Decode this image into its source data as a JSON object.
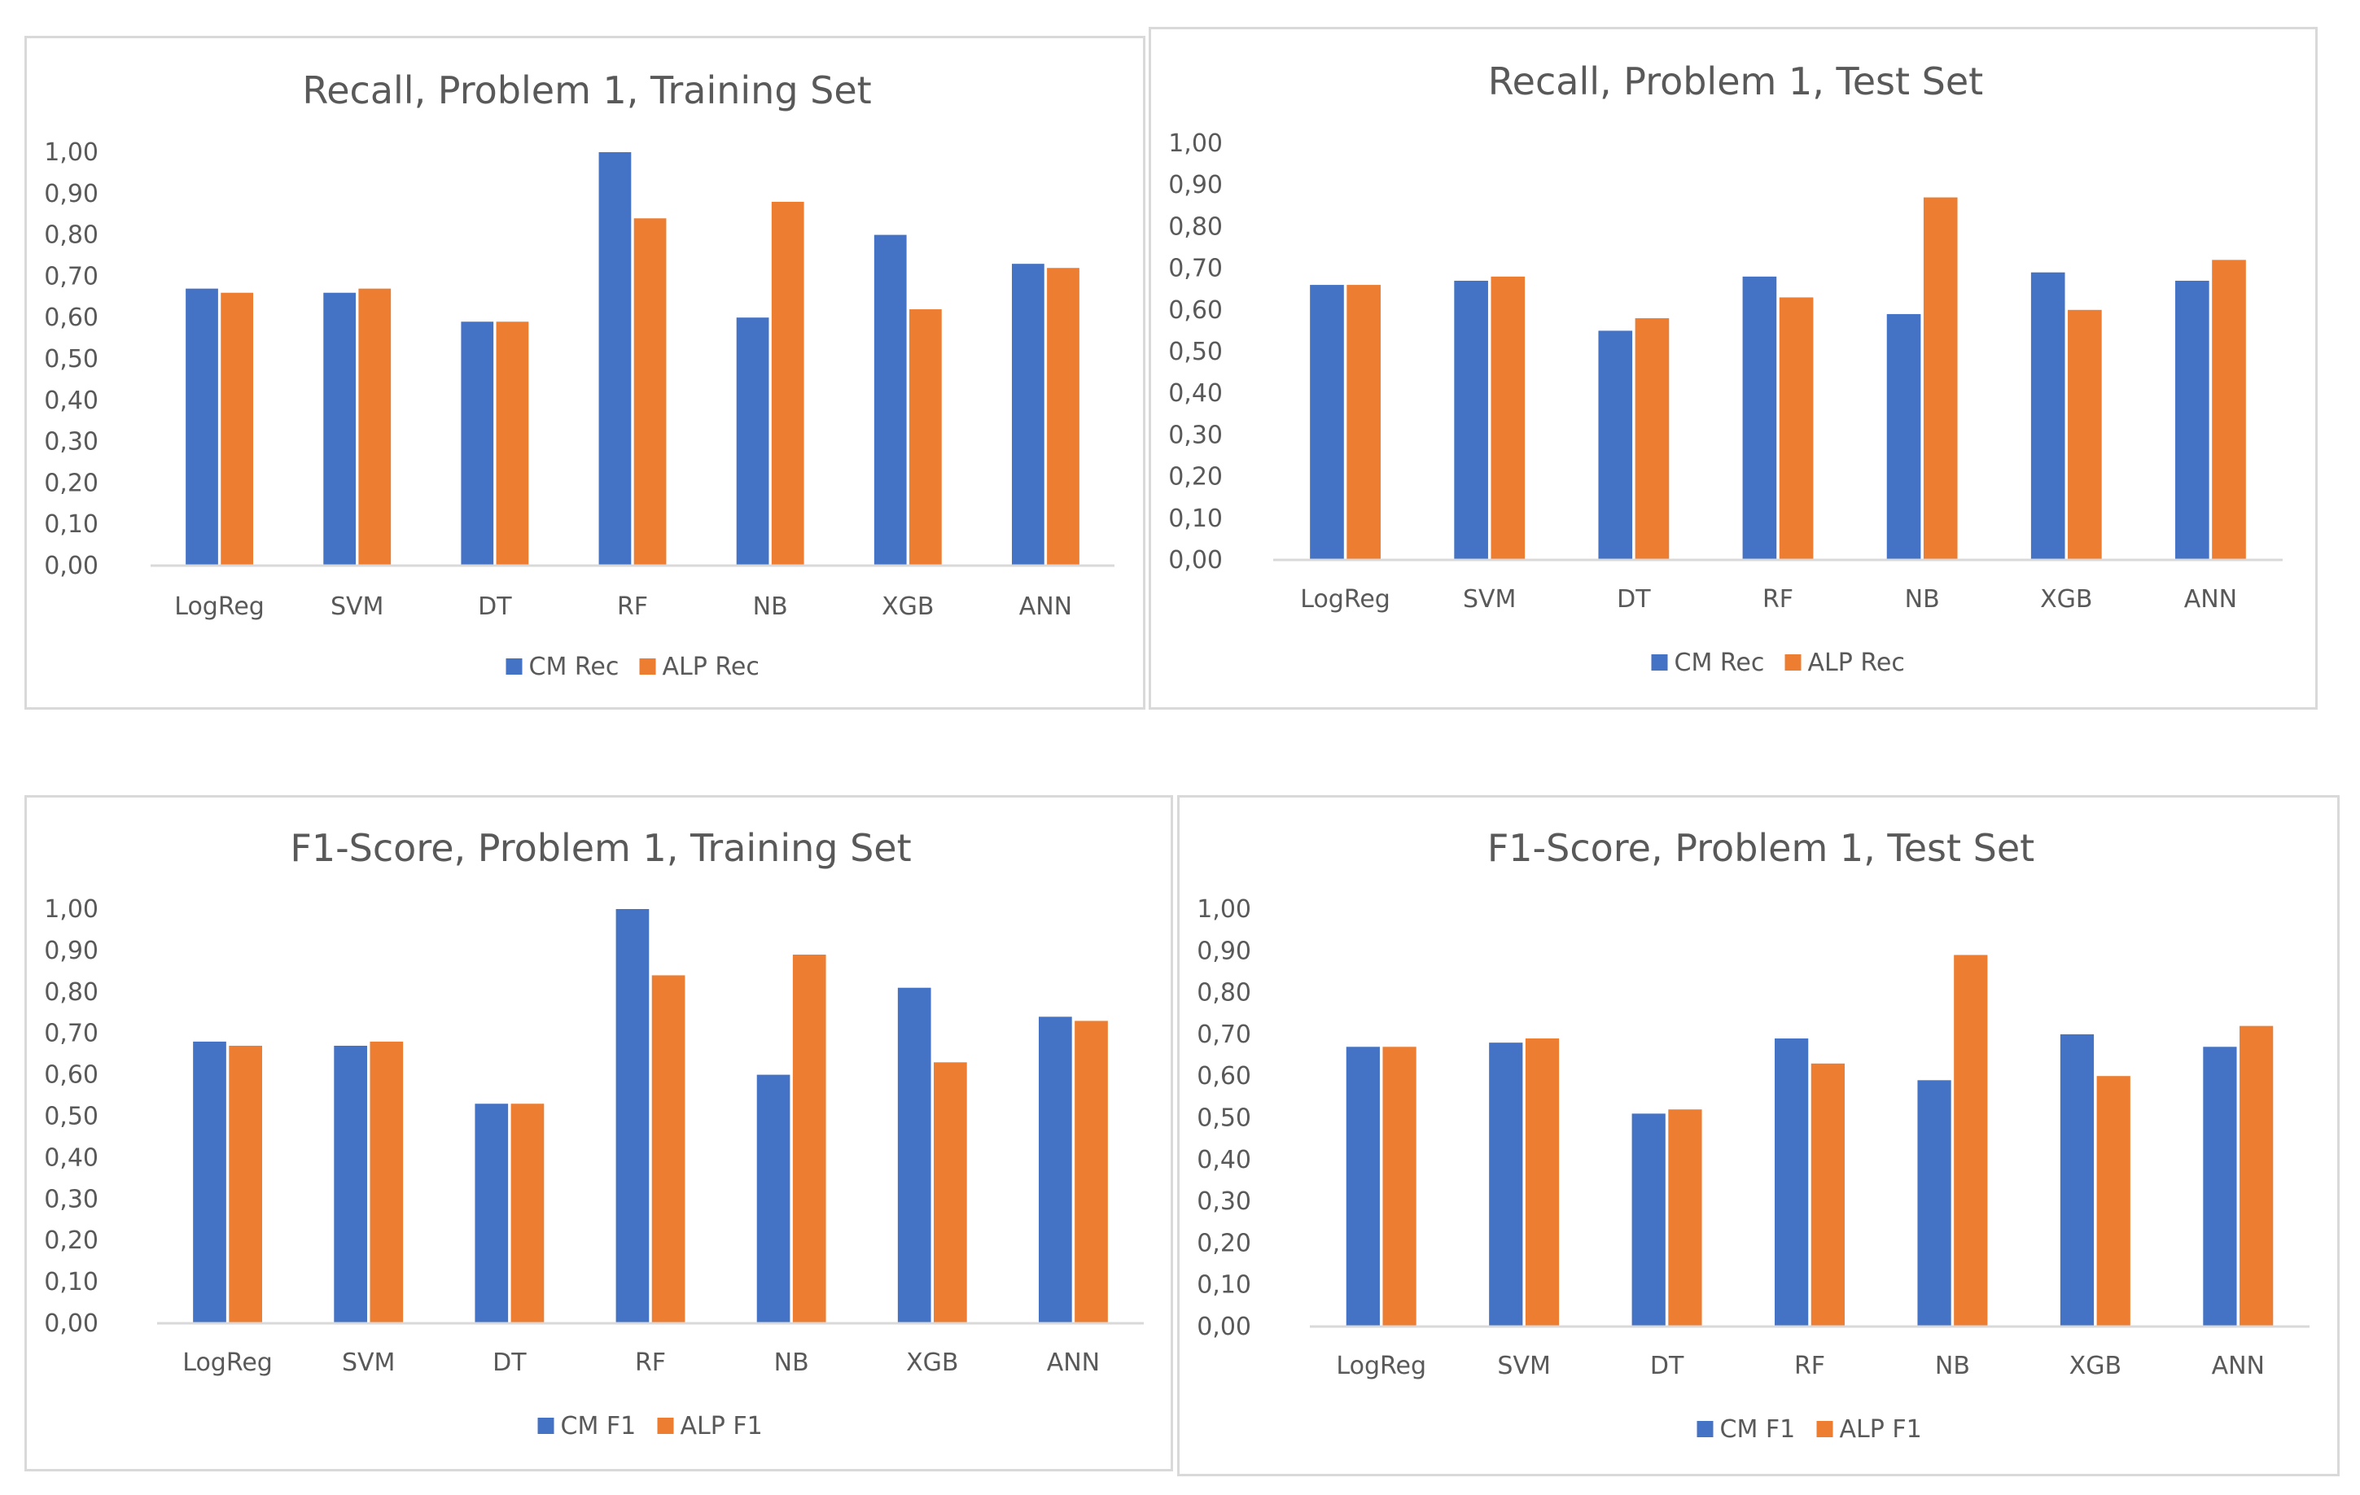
{
  "chart_data": [
    {
      "id": "recall-train",
      "type": "bar",
      "title": "Recall, Problem 1, Training Set",
      "categories": [
        "LogReg",
        "SVM",
        "DT",
        "RF",
        "NB",
        "XGB",
        "ANN"
      ],
      "series": [
        {
          "name": "CM Rec",
          "color": "#4472C4",
          "values": [
            0.67,
            0.66,
            0.59,
            1.0,
            0.6,
            0.8,
            0.73
          ]
        },
        {
          "name": "ALP Rec",
          "color": "#ED7D31",
          "values": [
            0.66,
            0.67,
            0.59,
            0.84,
            0.88,
            0.62,
            0.72
          ]
        }
      ],
      "y_ticks": [
        "0,00",
        "0,10",
        "0,20",
        "0,30",
        "0,40",
        "0,50",
        "0,60",
        "0,70",
        "0,80",
        "0,90",
        "1,00"
      ],
      "ylim": [
        0,
        1
      ],
      "xlabel": "",
      "ylabel": "",
      "grid": false,
      "legend": "bottom"
    },
    {
      "id": "recall-test",
      "type": "bar",
      "title": "Recall, Problem 1, Test Set",
      "categories": [
        "LogReg",
        "SVM",
        "DT",
        "RF",
        "NB",
        "XGB",
        "ANN"
      ],
      "series": [
        {
          "name": "CM Rec",
          "color": "#4472C4",
          "values": [
            0.66,
            0.67,
            0.55,
            0.68,
            0.59,
            0.69,
            0.67
          ]
        },
        {
          "name": "ALP Rec",
          "color": "#ED7D31",
          "values": [
            0.66,
            0.68,
            0.58,
            0.63,
            0.87,
            0.6,
            0.72
          ]
        }
      ],
      "y_ticks": [
        "0,00",
        "0,10",
        "0,20",
        "0,30",
        "0,40",
        "0,50",
        "0,60",
        "0,70",
        "0,80",
        "0,90",
        "1,00"
      ],
      "ylim": [
        0,
        1
      ],
      "xlabel": "",
      "ylabel": "",
      "grid": false,
      "legend": "bottom"
    },
    {
      "id": "f1-train",
      "type": "bar",
      "title": "F1-Score, Problem 1, Training Set",
      "categories": [
        "LogReg",
        "SVM",
        "DT",
        "RF",
        "NB",
        "XGB",
        "ANN"
      ],
      "series": [
        {
          "name": "CM F1",
          "color": "#4472C4",
          "values": [
            0.68,
            0.67,
            0.53,
            1.0,
            0.6,
            0.81,
            0.74
          ]
        },
        {
          "name": "ALP F1",
          "color": "#ED7D31",
          "values": [
            0.67,
            0.68,
            0.53,
            0.84,
            0.89,
            0.63,
            0.73
          ]
        }
      ],
      "y_ticks": [
        "0,00",
        "0,10",
        "0,20",
        "0,30",
        "0,40",
        "0,50",
        "0,60",
        "0,70",
        "0,80",
        "0,90",
        "1,00"
      ],
      "ylim": [
        0,
        1
      ],
      "xlabel": "",
      "ylabel": "",
      "grid": false,
      "legend": "bottom"
    },
    {
      "id": "f1-test",
      "type": "bar",
      "title": "F1-Score, Problem 1, Test Set",
      "categories": [
        "LogReg",
        "SVM",
        "DT",
        "RF",
        "NB",
        "XGB",
        "ANN"
      ],
      "series": [
        {
          "name": "CM F1",
          "color": "#4472C4",
          "values": [
            0.67,
            0.68,
            0.51,
            0.69,
            0.59,
            0.7,
            0.67
          ]
        },
        {
          "name": "ALP F1",
          "color": "#ED7D31",
          "values": [
            0.67,
            0.69,
            0.52,
            0.63,
            0.89,
            0.6,
            0.72
          ]
        }
      ],
      "y_ticks": [
        "0,00",
        "0,10",
        "0,20",
        "0,30",
        "0,40",
        "0,50",
        "0,60",
        "0,70",
        "0,80",
        "0,90",
        "1,00"
      ],
      "ylim": [
        0,
        1
      ],
      "xlabel": "",
      "ylabel": "",
      "grid": false,
      "legend": "bottom"
    }
  ]
}
